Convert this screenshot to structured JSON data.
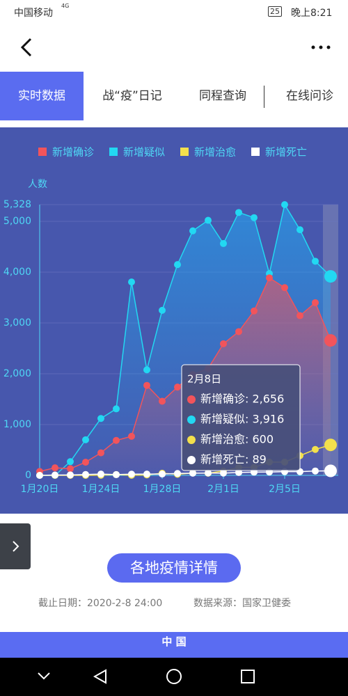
{
  "status_bar": {
    "carrier": "中国移动",
    "network": "4G",
    "battery": "25",
    "time": "晚上8:21"
  },
  "tabs": [
    "实时数据",
    "战“疫”日记",
    "同程查询",
    "在线问诊"
  ],
  "chart_data": {
    "type": "line",
    "y_label": "人数",
    "categories": [
      "1月20日",
      null,
      null,
      null,
      "1月24日",
      null,
      null,
      null,
      "1月28日",
      null,
      null,
      null,
      "2月1日",
      null,
      null,
      null,
      "2月5日",
      null,
      null,
      null
    ],
    "ylim": [
      0,
      5328
    ],
    "yticks": [
      0,
      {
        "value": 1000,
        "label": "1,000"
      },
      {
        "value": 2000,
        "label": "2,000"
      },
      {
        "value": 3000,
        "label": "3,000"
      },
      {
        "value": 4000,
        "label": "4,000"
      },
      {
        "value": 5000,
        "label": "5,000"
      },
      {
        "value": 5328,
        "label": "5,328"
      }
    ],
    "grid": true,
    "series": [
      {
        "name": "新增确诊",
        "color": "#f2545b",
        "values": [
          77,
          149,
          131,
          259,
          444,
          688,
          769,
          1771,
          1459,
          1737,
          1982,
          2102,
          2590,
          2829,
          3235,
          3887,
          3694,
          3143,
          3399,
          2656
        ]
      },
      {
        "name": "新增疑似",
        "color": "#22d8f2",
        "values": [
          0,
          0,
          270,
          700,
          1120,
          1309,
          3806,
          2077,
          3248,
          4148,
          4812,
          5019,
          4562,
          5173,
          5072,
          3971,
          5328,
          4833,
          4214,
          3916
        ]
      },
      {
        "name": "新增治愈",
        "color": "#f3e04c",
        "values": [
          0,
          0,
          0,
          0,
          3,
          15,
          2,
          9,
          43,
          21,
          47,
          43,
          85,
          157,
          157,
          262,
          261,
          387,
          510,
          600
        ]
      },
      {
        "name": "新增死亡",
        "color": "#ffffff",
        "values": [
          0,
          6,
          9,
          17,
          25,
          15,
          24,
          26,
          26,
          38,
          43,
          46,
          45,
          57,
          64,
          65,
          73,
          73,
          86,
          89
        ]
      }
    ],
    "tooltip": {
      "title": "2月8日",
      "lines": [
        "新增确诊: 2,656",
        "新增疑似: 3,916",
        "新增治愈: 600",
        "新增死亡: 89"
      ]
    }
  },
  "button": "各地疫情详情",
  "footer": {
    "date": "截止日期：2020-2-8 24:00",
    "source": "数据来源：国家卫健委"
  },
  "banner": "中 国"
}
